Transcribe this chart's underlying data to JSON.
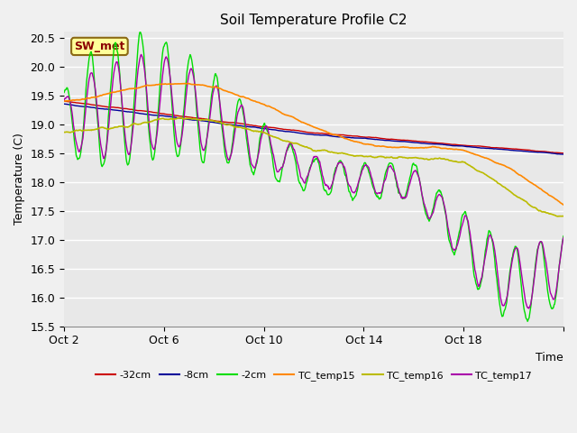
{
  "title": "Soil Temperature Profile C2",
  "xlabel": "Time",
  "ylabel": "Temperature (C)",
  "ylim": [
    15.5,
    20.6
  ],
  "annotation": "SW_met",
  "series_colors": {
    "-32cm": "#cc0000",
    "-8cm": "#000099",
    "-2cm": "#00dd00",
    "TC_temp15": "#ff8800",
    "TC_temp16": "#bbbb00",
    "TC_temp17": "#aa00aa"
  },
  "bg_color": "#f0f0f0",
  "plot_bg_color": "#e8e8e8",
  "x_tick_positions": [
    0,
    4,
    8,
    12,
    16,
    20
  ],
  "x_tick_labels": [
    "Oct 2",
    "Oct 6",
    "Oct 10",
    "Oct 14",
    "Oct 18",
    ""
  ],
  "y_ticks": [
    15.5,
    16.0,
    16.5,
    17.0,
    17.5,
    18.0,
    18.5,
    19.0,
    19.5,
    20.0,
    20.5
  ],
  "figsize": [
    6.4,
    4.8
  ],
  "dpi": 100
}
